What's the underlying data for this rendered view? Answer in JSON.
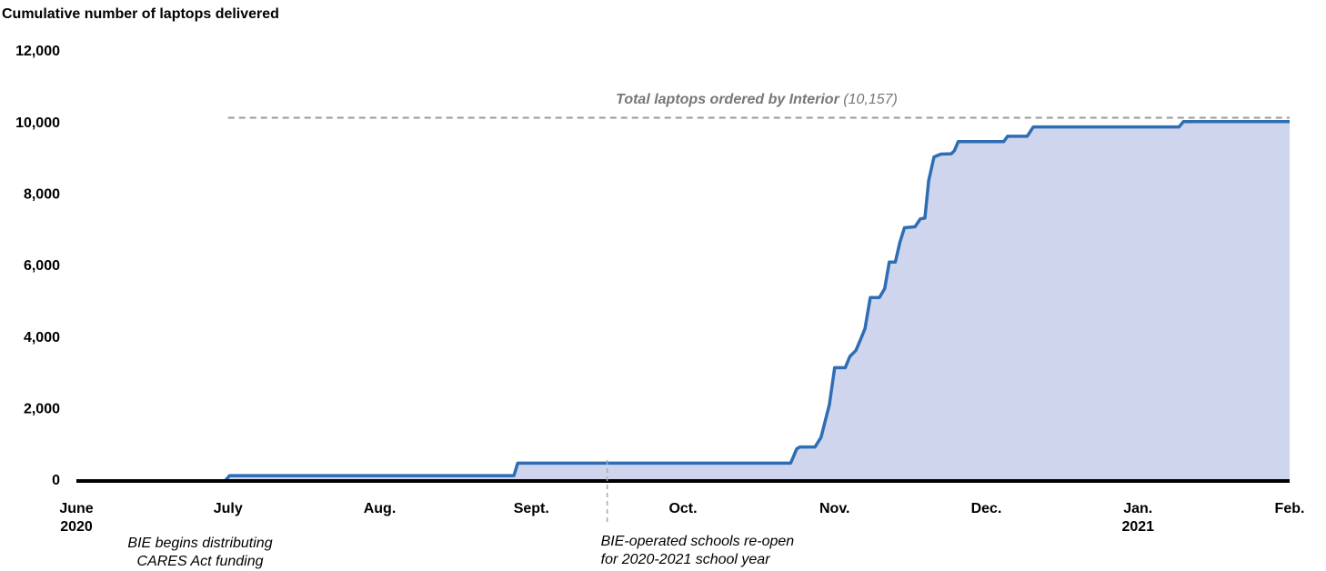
{
  "chart_data": {
    "type": "area",
    "title": "Cumulative number of laptops delivered",
    "color": "#2e6db4",
    "fill": "#d0d5ee",
    "x": [
      0,
      0.98,
      1.01,
      2.885,
      2.91,
      4.71,
      4.75,
      4.77,
      4.87,
      4.91,
      4.965,
      5.0,
      5.07,
      5.1,
      5.14,
      5.175,
      5.2,
      5.235,
      5.295,
      5.33,
      5.36,
      5.4,
      5.43,
      5.46,
      5.53,
      5.565,
      5.595,
      5.62,
      5.655,
      5.7,
      5.77,
      5.79,
      5.815,
      6.115,
      6.14,
      6.27,
      6.31,
      7.27,
      7.3,
      8.0
    ],
    "values": [
      0,
      0,
      150,
      150,
      500,
      500,
      900,
      950,
      950,
      1220,
      2130,
      3170,
      3170,
      3480,
      3650,
      4000,
      4260,
      5130,
      5130,
      5380,
      6120,
      6120,
      6670,
      7080,
      7110,
      7330,
      7350,
      8400,
      9060,
      9140,
      9150,
      9240,
      9490,
      9490,
      9640,
      9640,
      9900,
      9900,
      10050,
      10050
    ],
    "xlim": [
      0,
      8
    ],
    "xticks": [
      {
        "value": 0,
        "label": "June"
      },
      {
        "value": 1,
        "label": "July"
      },
      {
        "value": 2,
        "label": "Aug."
      },
      {
        "value": 3,
        "label": "Sept."
      },
      {
        "value": 4,
        "label": "Oct."
      },
      {
        "value": 5,
        "label": "Nov."
      },
      {
        "value": 6,
        "label": "Dec."
      },
      {
        "value": 7,
        "label": "Jan."
      },
      {
        "value": 8,
        "label": "Feb."
      }
    ],
    "year_labels": [
      {
        "value": 0,
        "label": "2020"
      },
      {
        "value": 7,
        "label": "2021"
      }
    ],
    "ylim": [
      0,
      12000
    ],
    "yticks": [
      0,
      {
        "value": 2000,
        "label": "2,000"
      },
      {
        "value": 4000,
        "label": "4,000"
      },
      {
        "value": 6000,
        "label": "6,000"
      },
      {
        "value": 8000,
        "label": "8,000"
      },
      {
        "value": 10000,
        "label": "10,000"
      },
      {
        "value": 12000,
        "label": "12,000"
      }
    ],
    "grid": false,
    "reference_line": {
      "label": "Total laptops ordered by Interior",
      "value": 10157,
      "value_label": "(10,157)",
      "x_start": 1
    },
    "annotations": [
      {
        "text": [
          "BIE begins distributing",
          "CARES Act funding"
        ]
      },
      {
        "text": [
          "BIE-operated schools re-open",
          "for 2020-2021 school year"
        ],
        "x": 3.5
      }
    ]
  }
}
